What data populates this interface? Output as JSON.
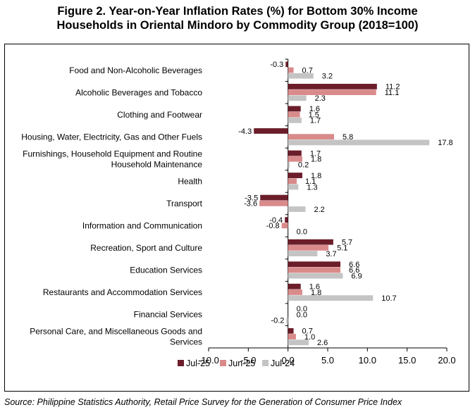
{
  "chart_data": {
    "type": "bar",
    "orientation": "horizontal",
    "title_line1": "Figure 2. Year-on-Year Inflation Rates (%) for Bottom 30% Income",
    "title_line2": "Households in Oriental Mindoro by Commodity Group (2018=100)",
    "categories": [
      [
        "Food and Non-Alcoholic Beverages"
      ],
      [
        "Alcoholic Beverages and Tobacco"
      ],
      [
        "Clothing and Footwear"
      ],
      [
        "Housing, Water, Electricity, Gas and Other Fuels"
      ],
      [
        "Furnishings, Household Equipment and Routine",
        "Household Maintenance"
      ],
      [
        "Health"
      ],
      [
        "Transport"
      ],
      [
        "Information and Communication"
      ],
      [
        "Recreation, Sport and Culture"
      ],
      [
        "Education Services"
      ],
      [
        "Restaurants and Accommodation Services"
      ],
      [
        "Financial Services"
      ],
      [
        "Personal Care, and Miscellaneous Goods and",
        "Services"
      ]
    ],
    "series": [
      {
        "name": "Jul-25",
        "color": "#6b1e2a",
        "values": [
          -0.3,
          11.2,
          1.6,
          -4.3,
          1.7,
          1.8,
          -3.5,
          -0.4,
          5.7,
          6.6,
          1.6,
          0.0,
          0.7
        ]
      },
      {
        "name": "Jun-25",
        "color": "#d98a8a",
        "values": [
          0.7,
          11.1,
          1.5,
          5.8,
          1.8,
          1.1,
          -3.6,
          -0.8,
          5.1,
          6.6,
          1.8,
          0.0,
          1.0
        ]
      },
      {
        "name": "Jul-24",
        "color": "#c4c4c4",
        "values": [
          3.2,
          2.3,
          1.7,
          17.8,
          0.2,
          1.3,
          2.2,
          0.0,
          3.7,
          6.9,
          10.7,
          -0.2,
          2.6
        ]
      }
    ],
    "value_labels": [
      [
        "-0.3",
        "11.2",
        "1.6",
        "-4.3",
        "1.7",
        "1.8",
        "-3.5",
        "-0.4",
        "5.7",
        "6.6",
        "1.6",
        "0.0",
        "0.7"
      ],
      [
        "0.7",
        "11.1",
        "1.5",
        "5.8",
        "1.8",
        "1.1",
        "-3.6",
        "-0.8",
        "5.1",
        "6.6",
        "1.8",
        "0.0",
        "1.0"
      ],
      [
        "3.2",
        "2.3",
        "1.7",
        "17.8",
        "0.2",
        "1.3",
        "2.2",
        "0.0",
        "3.7",
        "6.9",
        "10.7",
        "-0.2",
        "2.6"
      ]
    ],
    "xlim": [
      -10,
      20
    ],
    "x_ticks": [
      -10,
      -5,
      0,
      5,
      10,
      15,
      20
    ],
    "x_tick_labels": [
      "-10.0",
      "-5.0",
      "0.0",
      "5.0",
      "10.0",
      "15.0",
      "20.0"
    ],
    "grid": false,
    "legend_position": "bottom"
  },
  "source": "Source: Philippine Statistics Authority, Retail Price Survey for the Generation of Consumer Price Index"
}
